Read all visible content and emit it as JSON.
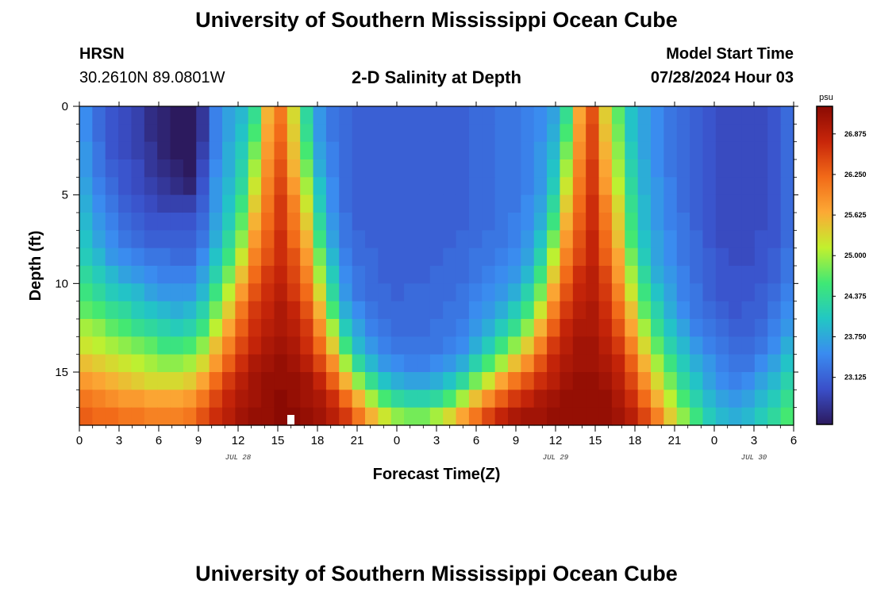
{
  "page": {
    "title_top": "University of Southern Mississippi Ocean Cube",
    "title_bottom": "University of Southern Mississippi Ocean Cube",
    "station_name": "HRSN",
    "station_coords": "30.2610N  89.0801W",
    "plot_title": "2-D Salinity at Depth",
    "model_start_label": "Model Start Time",
    "model_start_value": "07/28/2024 Hour 03"
  },
  "chart_data": {
    "type": "heatmap",
    "title": "2-D Salinity at Depth",
    "xlabel": "Forecast Time(Z)",
    "ylabel": "Depth (ft)",
    "colorbar_unit": "psu",
    "x_hours_range": [
      0,
      54
    ],
    "y_depth_range": [
      0,
      18
    ],
    "x_ticks": [
      {
        "hour": 0,
        "label": "0"
      },
      {
        "hour": 3,
        "label": "3"
      },
      {
        "hour": 6,
        "label": "6"
      },
      {
        "hour": 9,
        "label": "9"
      },
      {
        "hour": 12,
        "label": "12"
      },
      {
        "hour": 15,
        "label": "15"
      },
      {
        "hour": 18,
        "label": "18"
      },
      {
        "hour": 21,
        "label": "21"
      },
      {
        "hour": 24,
        "label": "0"
      },
      {
        "hour": 27,
        "label": "3"
      },
      {
        "hour": 30,
        "label": "6"
      },
      {
        "hour": 33,
        "label": "9"
      },
      {
        "hour": 36,
        "label": "12"
      },
      {
        "hour": 39,
        "label": "15"
      },
      {
        "hour": 42,
        "label": "18"
      },
      {
        "hour": 45,
        "label": "21"
      },
      {
        "hour": 48,
        "label": "0"
      },
      {
        "hour": 51,
        "label": "3"
      },
      {
        "hour": 54,
        "label": "6"
      }
    ],
    "date_labels": [
      {
        "hour": 12,
        "label": "JUL 28"
      },
      {
        "hour": 36,
        "label": "JUL 29"
      },
      {
        "hour": 51,
        "label": "JUL 30"
      }
    ],
    "y_ticks": [
      {
        "depth": 0,
        "label": "0"
      },
      {
        "depth": 5,
        "label": "5"
      },
      {
        "depth": 10,
        "label": "10"
      },
      {
        "depth": 15,
        "label": "15"
      }
    ],
    "colorbar_min": 22.4,
    "colorbar_max": 27.3,
    "colorbar_ticks": [
      {
        "value": 23.125,
        "label": "23.125"
      },
      {
        "value": 23.75,
        "label": "23.750"
      },
      {
        "value": 24.375,
        "label": "24.375"
      },
      {
        "value": 25.0,
        "label": "25.000"
      },
      {
        "value": 25.625,
        "label": "25.625"
      },
      {
        "value": 26.25,
        "label": "26.250"
      },
      {
        "value": 26.875,
        "label": "26.875"
      }
    ],
    "color_stops": [
      "#2c1a5e",
      "#3a4fc9",
      "#3a8bf0",
      "#22c7c4",
      "#3fe875",
      "#c2f02e",
      "#fca935",
      "#f26a18",
      "#c8260a",
      "#8a0a03"
    ],
    "grid_hours": 55,
    "grid_levels": 18,
    "salinity_grid_levels_note": "rows = depth levels from surface (0 ft) to bottom (18 ft); columns = hourly values 0..54",
    "salinity": [
      [
        23.5,
        23.2,
        23.0,
        22.9,
        22.8,
        22.6,
        22.5,
        22.3,
        22.2,
        22.7,
        23.4,
        23.7,
        23.9,
        24.4,
        25.6,
        26.1,
        25.3,
        24.3,
        23.6,
        23.3,
        23.2,
        23.1,
        23.1,
        23.1,
        23.1,
        23.1,
        23.1,
        23.1,
        23.1,
        23.1,
        23.2,
        23.2,
        23.3,
        23.3,
        23.4,
        23.5,
        23.7,
        24.4,
        25.7,
        26.4,
        25.4,
        24.7,
        24.0,
        23.7,
        23.5,
        23.3,
        23.2,
        23.1,
        23.0,
        22.9,
        22.9,
        22.9,
        22.9,
        23.0,
        23.2
      ],
      [
        23.5,
        23.2,
        23.0,
        22.9,
        22.8,
        22.6,
        22.5,
        22.3,
        22.2,
        22.7,
        23.4,
        23.7,
        24.0,
        24.6,
        25.7,
        26.2,
        25.4,
        24.4,
        23.6,
        23.3,
        23.2,
        23.1,
        23.1,
        23.1,
        23.1,
        23.1,
        23.1,
        23.1,
        23.1,
        23.1,
        23.2,
        23.2,
        23.3,
        23.3,
        23.4,
        23.5,
        23.8,
        24.6,
        25.8,
        26.5,
        25.5,
        24.8,
        24.0,
        23.7,
        23.5,
        23.3,
        23.2,
        23.1,
        23.0,
        22.9,
        22.9,
        22.9,
        22.9,
        23.0,
        23.2
      ],
      [
        23.6,
        23.3,
        23.0,
        22.9,
        22.8,
        22.7,
        22.5,
        22.4,
        22.3,
        22.8,
        23.4,
        23.8,
        24.1,
        24.8,
        25.8,
        26.3,
        25.5,
        24.6,
        23.7,
        23.4,
        23.2,
        23.1,
        23.1,
        23.1,
        23.1,
        23.1,
        23.1,
        23.1,
        23.1,
        23.1,
        23.2,
        23.2,
        23.3,
        23.3,
        23.4,
        23.6,
        23.9,
        24.8,
        25.9,
        26.5,
        25.6,
        24.9,
        24.1,
        23.7,
        23.5,
        23.3,
        23.2,
        23.1,
        23.0,
        22.9,
        22.9,
        22.9,
        22.9,
        23.0,
        23.2
      ],
      [
        23.6,
        23.3,
        23.1,
        23.0,
        22.9,
        22.7,
        22.6,
        22.5,
        22.4,
        22.9,
        23.5,
        23.8,
        24.2,
        25.0,
        25.9,
        26.4,
        25.6,
        24.8,
        23.8,
        23.4,
        23.2,
        23.1,
        23.1,
        23.1,
        23.1,
        23.1,
        23.1,
        23.1,
        23.1,
        23.1,
        23.2,
        23.2,
        23.3,
        23.3,
        23.4,
        23.6,
        24.0,
        25.0,
        26.0,
        26.6,
        25.7,
        25.0,
        24.2,
        23.8,
        23.5,
        23.3,
        23.2,
        23.1,
        23.0,
        22.9,
        22.9,
        22.9,
        22.9,
        23.0,
        23.2
      ],
      [
        23.7,
        23.4,
        23.2,
        23.0,
        22.9,
        22.8,
        22.7,
        22.6,
        22.5,
        23.0,
        23.6,
        23.9,
        24.3,
        25.2,
        26.0,
        26.5,
        25.8,
        25.0,
        24.0,
        23.5,
        23.2,
        23.1,
        23.1,
        23.1,
        23.1,
        23.1,
        23.1,
        23.1,
        23.1,
        23.1,
        23.2,
        23.2,
        23.3,
        23.3,
        23.4,
        23.6,
        24.1,
        25.2,
        26.1,
        26.6,
        25.8,
        25.1,
        24.3,
        23.8,
        23.6,
        23.4,
        23.2,
        23.1,
        23.0,
        22.9,
        22.9,
        22.9,
        22.9,
        23.0,
        23.2
      ],
      [
        23.8,
        23.5,
        23.3,
        23.1,
        23.0,
        22.9,
        22.8,
        22.8,
        22.8,
        23.1,
        23.6,
        24.0,
        24.5,
        25.4,
        26.1,
        26.6,
        26.0,
        25.2,
        24.1,
        23.5,
        23.2,
        23.1,
        23.1,
        23.1,
        23.1,
        23.1,
        23.1,
        23.1,
        23.1,
        23.1,
        23.2,
        23.2,
        23.3,
        23.3,
        23.5,
        23.7,
        24.3,
        25.4,
        26.2,
        26.7,
        26.0,
        25.3,
        24.4,
        23.9,
        23.6,
        23.4,
        23.2,
        23.1,
        23.0,
        22.9,
        22.9,
        22.9,
        22.9,
        23.0,
        23.2
      ],
      [
        23.9,
        23.6,
        23.4,
        23.2,
        23.1,
        23.0,
        23.0,
        23.0,
        23.0,
        23.2,
        23.7,
        24.1,
        24.7,
        25.6,
        26.2,
        26.6,
        26.1,
        25.4,
        24.3,
        23.6,
        23.3,
        23.1,
        23.1,
        23.1,
        23.1,
        23.1,
        23.1,
        23.1,
        23.1,
        23.1,
        23.2,
        23.2,
        23.3,
        23.4,
        23.5,
        23.8,
        24.5,
        25.6,
        26.3,
        26.7,
        26.1,
        25.4,
        24.5,
        23.9,
        23.6,
        23.4,
        23.3,
        23.1,
        23.0,
        22.9,
        22.9,
        22.9,
        22.9,
        23.0,
        23.2
      ],
      [
        24.0,
        23.7,
        23.5,
        23.3,
        23.2,
        23.1,
        23.1,
        23.1,
        23.1,
        23.3,
        23.8,
        24.3,
        24.9,
        25.8,
        26.3,
        26.7,
        26.2,
        25.6,
        24.5,
        23.7,
        23.3,
        23.2,
        23.1,
        23.1,
        23.1,
        23.1,
        23.1,
        23.1,
        23.1,
        23.2,
        23.2,
        23.3,
        23.3,
        23.4,
        23.6,
        24.0,
        24.8,
        25.8,
        26.4,
        26.8,
        26.2,
        25.5,
        24.6,
        24.0,
        23.7,
        23.5,
        23.3,
        23.2,
        23.0,
        22.9,
        22.9,
        22.9,
        23.0,
        23.0,
        23.2
      ],
      [
        24.1,
        23.9,
        23.6,
        23.5,
        23.4,
        23.3,
        23.3,
        23.2,
        23.2,
        23.5,
        24.0,
        24.5,
        25.2,
        26.0,
        26.4,
        26.7,
        26.4,
        25.8,
        24.8,
        23.9,
        23.4,
        23.2,
        23.2,
        23.1,
        23.1,
        23.1,
        23.1,
        23.1,
        23.2,
        23.2,
        23.3,
        23.3,
        23.4,
        23.5,
        23.7,
        24.2,
        25.1,
        26.0,
        26.5,
        26.8,
        26.3,
        25.7,
        24.8,
        24.1,
        23.7,
        23.5,
        23.3,
        23.2,
        23.1,
        23.0,
        22.9,
        22.9,
        23.0,
        23.1,
        23.3
      ],
      [
        24.3,
        24.1,
        23.9,
        23.7,
        23.6,
        23.5,
        23.4,
        23.4,
        23.4,
        23.7,
        24.2,
        24.8,
        25.5,
        26.2,
        26.6,
        26.8,
        26.5,
        26.0,
        25.0,
        24.1,
        23.5,
        23.3,
        23.2,
        23.1,
        23.1,
        23.1,
        23.1,
        23.2,
        23.2,
        23.2,
        23.3,
        23.4,
        23.5,
        23.6,
        23.9,
        24.5,
        25.4,
        26.2,
        26.7,
        26.9,
        26.5,
        25.8,
        25.0,
        24.3,
        23.8,
        23.6,
        23.4,
        23.2,
        23.1,
        23.0,
        23.0,
        23.0,
        23.0,
        23.1,
        23.3
      ],
      [
        24.5,
        24.3,
        24.1,
        24.0,
        23.9,
        23.7,
        23.6,
        23.6,
        23.6,
        23.9,
        24.5,
        25.1,
        25.8,
        26.4,
        26.7,
        26.9,
        26.6,
        26.2,
        25.3,
        24.3,
        23.6,
        23.3,
        23.2,
        23.2,
        23.1,
        23.2,
        23.2,
        23.2,
        23.2,
        23.3,
        23.4,
        23.5,
        23.6,
        23.8,
        24.2,
        24.8,
        25.7,
        26.4,
        26.8,
        26.9,
        26.6,
        26.0,
        25.2,
        24.5,
        24.0,
        23.7,
        23.4,
        23.3,
        23.1,
        23.0,
        23.0,
        23.0,
        23.1,
        23.2,
        23.4
      ],
      [
        24.7,
        24.6,
        24.4,
        24.3,
        24.1,
        24.0,
        23.9,
        23.8,
        23.9,
        24.2,
        24.8,
        25.4,
        26.1,
        26.6,
        26.8,
        27.0,
        26.8,
        26.4,
        25.6,
        24.6,
        23.8,
        23.5,
        23.3,
        23.2,
        23.2,
        23.2,
        23.2,
        23.2,
        23.3,
        23.3,
        23.5,
        23.6,
        23.8,
        24.1,
        24.5,
        25.2,
        26.0,
        26.6,
        26.9,
        27.0,
        26.7,
        26.2,
        25.5,
        24.7,
        24.2,
        23.8,
        23.5,
        23.3,
        23.2,
        23.1,
        23.0,
        23.1,
        23.1,
        23.3,
        23.5
      ],
      [
        25.0,
        24.9,
        24.7,
        24.6,
        24.4,
        24.3,
        24.2,
        24.1,
        24.2,
        24.5,
        25.1,
        25.7,
        26.3,
        26.7,
        26.9,
        27.0,
        26.9,
        26.6,
        25.9,
        25.0,
        24.1,
        23.7,
        23.4,
        23.3,
        23.2,
        23.2,
        23.2,
        23.3,
        23.3,
        23.4,
        23.6,
        23.8,
        24.1,
        24.4,
        24.9,
        25.6,
        26.3,
        26.8,
        27.0,
        27.0,
        26.8,
        26.4,
        25.7,
        25.0,
        24.4,
        24.0,
        23.7,
        23.4,
        23.3,
        23.2,
        23.1,
        23.1,
        23.2,
        23.4,
        23.6
      ],
      [
        25.2,
        25.1,
        25.0,
        24.9,
        24.8,
        24.7,
        24.5,
        24.5,
        24.6,
        24.9,
        25.5,
        26.0,
        26.5,
        26.8,
        27.0,
        27.1,
        27.0,
        26.7,
        26.2,
        25.4,
        24.5,
        23.9,
        23.6,
        23.4,
        23.3,
        23.3,
        23.3,
        23.3,
        23.4,
        23.5,
        23.8,
        24.1,
        24.5,
        24.9,
        25.4,
        26.0,
        26.6,
        26.9,
        27.1,
        27.1,
        26.9,
        26.6,
        26.0,
        25.3,
        24.7,
        24.2,
        23.9,
        23.6,
        23.4,
        23.3,
        23.2,
        23.2,
        23.3,
        23.5,
        23.8
      ],
      [
        25.5,
        25.4,
        25.3,
        25.2,
        25.1,
        25.0,
        24.9,
        24.9,
        25.0,
        25.3,
        25.8,
        26.3,
        26.7,
        27.0,
        27.1,
        27.2,
        27.1,
        26.9,
        26.5,
        25.9,
        25.0,
        24.3,
        23.9,
        23.6,
        23.5,
        23.4,
        23.4,
        23.5,
        23.6,
        23.8,
        24.2,
        24.6,
        25.0,
        25.5,
        25.9,
        26.4,
        26.8,
        27.0,
        27.1,
        27.1,
        27.0,
        26.8,
        26.3,
        25.6,
        25.0,
        24.5,
        24.1,
        23.8,
        23.6,
        23.4,
        23.3,
        23.3,
        23.5,
        23.7,
        24.0
      ],
      [
        25.8,
        25.7,
        25.6,
        25.5,
        25.4,
        25.3,
        25.3,
        25.3,
        25.4,
        25.7,
        26.2,
        26.6,
        26.9,
        27.1,
        27.2,
        27.2,
        27.2,
        27.1,
        26.8,
        26.3,
        25.6,
        24.9,
        24.4,
        24.0,
        23.8,
        23.7,
        23.7,
        23.8,
        24.0,
        24.3,
        24.8,
        25.2,
        25.7,
        26.1,
        26.4,
        26.7,
        26.9,
        27.1,
        27.2,
        27.2,
        27.1,
        26.9,
        26.5,
        25.9,
        25.3,
        24.8,
        24.3,
        24.0,
        23.7,
        23.5,
        23.4,
        23.5,
        23.7,
        23.9,
        24.2
      ],
      [
        26.1,
        26.0,
        25.9,
        25.8,
        25.8,
        25.7,
        25.7,
        25.7,
        25.8,
        26.1,
        26.5,
        26.8,
        27.0,
        27.1,
        27.2,
        27.3,
        27.2,
        27.1,
        27.0,
        26.7,
        26.2,
        25.6,
        25.0,
        24.6,
        24.3,
        24.2,
        24.2,
        24.3,
        24.6,
        25.0,
        25.5,
        25.9,
        26.3,
        26.6,
        26.8,
        27.0,
        27.1,
        27.2,
        27.2,
        27.2,
        27.2,
        27.0,
        26.7,
        26.2,
        25.6,
        25.1,
        24.6,
        24.2,
        23.9,
        23.7,
        23.6,
        23.7,
        23.9,
        24.1,
        24.4
      ],
      [
        26.3,
        26.2,
        26.2,
        26.1,
        26.1,
        26.0,
        26.0,
        26.0,
        26.1,
        26.4,
        26.7,
        26.9,
        27.1,
        27.2,
        27.2,
        27.3,
        27.3,
        27.2,
        27.1,
        26.9,
        26.6,
        26.1,
        25.6,
        25.2,
        24.9,
        24.8,
        24.8,
        25.0,
        25.3,
        25.7,
        26.1,
        26.5,
        26.8,
        27.0,
        27.1,
        27.1,
        27.2,
        27.2,
        27.2,
        27.2,
        27.2,
        27.1,
        26.9,
        26.5,
        26.0,
        25.4,
        24.9,
        24.5,
        24.1,
        23.9,
        23.8,
        23.9,
        24.1,
        24.3,
        24.6
      ]
    ]
  }
}
